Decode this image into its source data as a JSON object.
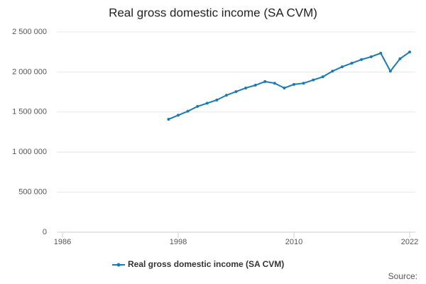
{
  "chart_data": {
    "type": "line",
    "title": "Real gross domestic income (SA CVM)",
    "x": [
      1997,
      1998,
      1999,
      2000,
      2001,
      2002,
      2003,
      2004,
      2005,
      2006,
      2007,
      2008,
      2009,
      2010,
      2011,
      2012,
      2013,
      2014,
      2015,
      2016,
      2017,
      2018,
      2019,
      2020,
      2021,
      2022
    ],
    "series": [
      {
        "name": "Real gross domestic income (SA CVM)",
        "color": "#1a7ab5",
        "values": [
          1410000,
          1460000,
          1510000,
          1570000,
          1610000,
          1650000,
          1710000,
          1755000,
          1800000,
          1835000,
          1880000,
          1860000,
          1800000,
          1845000,
          1860000,
          1900000,
          1940000,
          2010000,
          2065000,
          2110000,
          2155000,
          2190000,
          2235000,
          2010000,
          2165000,
          2250000
        ]
      }
    ],
    "xlim": [
      1986,
      2022
    ],
    "xticks": [
      1986,
      1998,
      2010,
      2022
    ],
    "ylim": [
      0,
      2500000
    ],
    "yticks": [
      0,
      {
        "value": 500000,
        "label": "500 000"
      },
      {
        "value": 1000000,
        "label": "1 000 000"
      },
      {
        "value": 1500000,
        "label": "1 500 000"
      },
      {
        "value": 2000000,
        "label": "2 000 000"
      },
      {
        "value": 2500000,
        "label": "2 500 000"
      }
    ],
    "grid": true,
    "legend": "bottom",
    "source_label": "Source:"
  }
}
